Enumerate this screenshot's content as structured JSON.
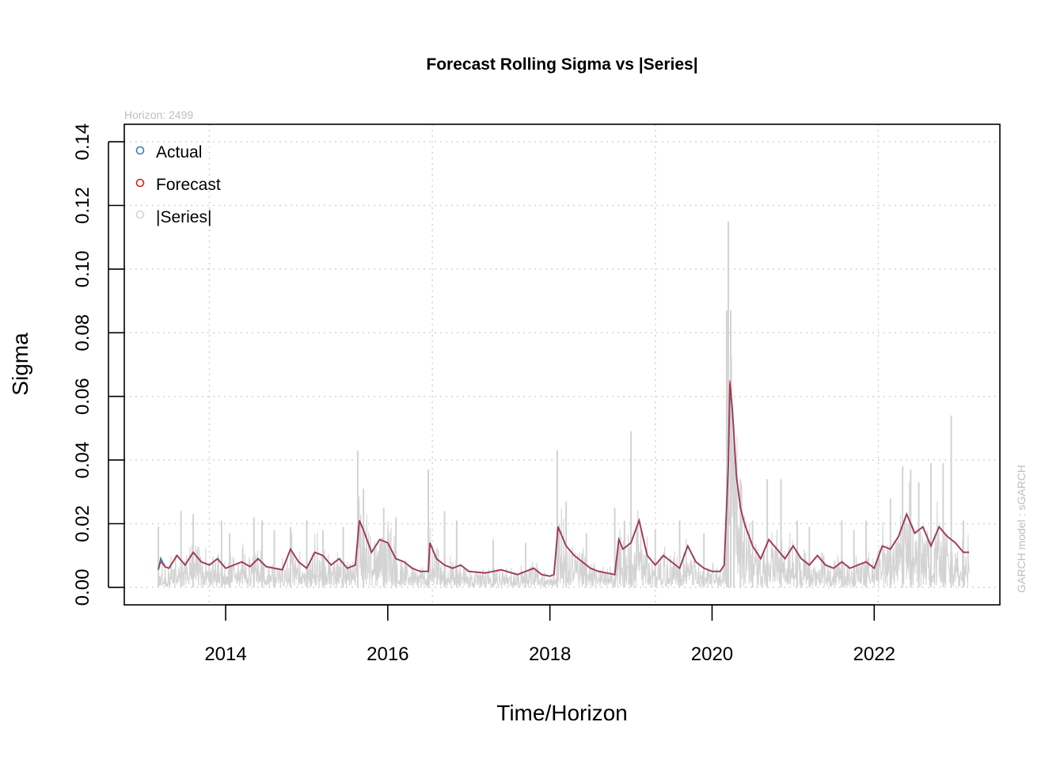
{
  "chart_data": {
    "type": "line",
    "title": "Forecast Rolling Sigma vs |Series|",
    "subtitle": "Horizon: 2499",
    "xlabel": "Time/Horizon",
    "ylabel": "Sigma",
    "side_note": "GARCH model :  sGARCH",
    "xlim": [
      2012.75,
      2023.55
    ],
    "ylim": [
      -0.0055,
      0.1455
    ],
    "x_ticks": [
      2014,
      2016,
      2018,
      2020,
      2022
    ],
    "x_tick_labels": [
      "2014",
      "2016",
      "2018",
      "2020",
      "2022"
    ],
    "y_ticks": [
      0.0,
      0.02,
      0.04,
      0.06,
      0.08,
      0.1,
      0.12,
      0.14
    ],
    "y_tick_labels": [
      "0.00",
      "0.02",
      "0.04",
      "0.06",
      "0.08",
      "0.10",
      "0.12",
      "0.14"
    ],
    "x_grid": [
      2013.8,
      2016.55,
      2019.3,
      2022.05
    ],
    "grid": true,
    "legend_position": "top-left",
    "series": [
      {
        "name": "Actual",
        "color": "#377eb8",
        "x": [
          2013.17,
          2013.2,
          2013.25,
          2013.3,
          2013.4,
          2013.5,
          2013.6,
          2013.7,
          2013.8,
          2013.9,
          2014.0,
          2014.1,
          2014.2,
          2014.3,
          2014.4,
          2014.5,
          2014.6,
          2014.7,
          2014.8,
          2014.9,
          2015.0,
          2015.1,
          2015.2,
          2015.3,
          2015.4,
          2015.5,
          2015.6,
          2015.65,
          2015.7,
          2015.8,
          2015.9,
          2016.0,
          2016.1,
          2016.2,
          2016.3,
          2016.4,
          2016.5,
          2016.52,
          2016.6,
          2016.7,
          2016.8,
          2016.9,
          2017.0,
          2017.2,
          2017.4,
          2017.6,
          2017.8,
          2017.9,
          2018.0,
          2018.05,
          2018.1,
          2018.2,
          2018.3,
          2018.4,
          2018.5,
          2018.6,
          2018.7,
          2018.8,
          2018.85,
          2018.9,
          2019.0,
          2019.1,
          2019.2,
          2019.3,
          2019.4,
          2019.5,
          2019.6,
          2019.7,
          2019.8,
          2019.9,
          2020.0,
          2020.1,
          2020.15,
          2020.2,
          2020.22,
          2020.25,
          2020.3,
          2020.35,
          2020.4,
          2020.5,
          2020.6,
          2020.7,
          2020.8,
          2020.9,
          2021.0,
          2021.1,
          2021.2,
          2021.3,
          2021.4,
          2021.5,
          2021.6,
          2021.7,
          2021.8,
          2021.9,
          2022.0,
          2022.1,
          2022.2,
          2022.3,
          2022.4,
          2022.5,
          2022.6,
          2022.7,
          2022.8,
          2022.9,
          2023.0,
          2023.1,
          2023.17
        ],
        "values": [
          0.0055,
          0.009,
          0.0065,
          0.006,
          0.01,
          0.007,
          0.011,
          0.008,
          0.007,
          0.009,
          0.006,
          0.007,
          0.008,
          0.0065,
          0.009,
          0.0065,
          0.006,
          0.0055,
          0.012,
          0.008,
          0.006,
          0.011,
          0.01,
          0.007,
          0.009,
          0.006,
          0.007,
          0.021,
          0.018,
          0.011,
          0.015,
          0.014,
          0.009,
          0.008,
          0.006,
          0.005,
          0.005,
          0.014,
          0.009,
          0.007,
          0.006,
          0.007,
          0.005,
          0.0045,
          0.0055,
          0.004,
          0.006,
          0.004,
          0.0035,
          0.004,
          0.019,
          0.013,
          0.01,
          0.008,
          0.006,
          0.005,
          0.0045,
          0.004,
          0.015,
          0.012,
          0.014,
          0.021,
          0.01,
          0.007,
          0.01,
          0.008,
          0.006,
          0.013,
          0.008,
          0.006,
          0.005,
          0.005,
          0.007,
          0.038,
          0.064,
          0.056,
          0.035,
          0.025,
          0.02,
          0.013,
          0.009,
          0.015,
          0.012,
          0.009,
          0.013,
          0.009,
          0.007,
          0.01,
          0.007,
          0.006,
          0.008,
          0.006,
          0.007,
          0.008,
          0.006,
          0.013,
          0.012,
          0.016,
          0.023,
          0.017,
          0.019,
          0.013,
          0.019,
          0.016,
          0.014,
          0.011,
          0.011
        ]
      },
      {
        "name": "Forecast",
        "color": "#e41a1c",
        "x": [
          2013.17,
          2013.2,
          2013.25,
          2013.3,
          2013.4,
          2013.5,
          2013.6,
          2013.7,
          2013.8,
          2013.9,
          2014.0,
          2014.1,
          2014.2,
          2014.3,
          2014.4,
          2014.5,
          2014.6,
          2014.7,
          2014.8,
          2014.9,
          2015.0,
          2015.1,
          2015.2,
          2015.3,
          2015.4,
          2015.5,
          2015.6,
          2015.65,
          2015.7,
          2015.8,
          2015.9,
          2016.0,
          2016.1,
          2016.2,
          2016.3,
          2016.4,
          2016.5,
          2016.52,
          2016.6,
          2016.7,
          2016.8,
          2016.9,
          2017.0,
          2017.2,
          2017.4,
          2017.6,
          2017.8,
          2017.9,
          2018.0,
          2018.05,
          2018.1,
          2018.2,
          2018.3,
          2018.4,
          2018.5,
          2018.6,
          2018.7,
          2018.8,
          2018.85,
          2018.9,
          2019.0,
          2019.1,
          2019.2,
          2019.3,
          2019.4,
          2019.5,
          2019.6,
          2019.7,
          2019.8,
          2019.9,
          2020.0,
          2020.1,
          2020.15,
          2020.2,
          2020.22,
          2020.25,
          2020.3,
          2020.35,
          2020.4,
          2020.5,
          2020.6,
          2020.7,
          2020.8,
          2020.9,
          2021.0,
          2021.1,
          2021.2,
          2021.3,
          2021.4,
          2021.5,
          2021.6,
          2021.7,
          2021.8,
          2021.9,
          2022.0,
          2022.1,
          2022.2,
          2022.3,
          2022.4,
          2022.5,
          2022.6,
          2022.7,
          2022.8,
          2022.9,
          2023.0,
          2023.1,
          2023.17
        ],
        "values": [
          0.006,
          0.008,
          0.0065,
          0.006,
          0.01,
          0.007,
          0.011,
          0.008,
          0.007,
          0.009,
          0.006,
          0.007,
          0.008,
          0.0065,
          0.009,
          0.0065,
          0.006,
          0.0055,
          0.012,
          0.008,
          0.006,
          0.011,
          0.01,
          0.007,
          0.009,
          0.006,
          0.007,
          0.021,
          0.018,
          0.011,
          0.015,
          0.014,
          0.009,
          0.008,
          0.006,
          0.005,
          0.005,
          0.014,
          0.009,
          0.007,
          0.006,
          0.007,
          0.005,
          0.0045,
          0.0055,
          0.004,
          0.006,
          0.004,
          0.0035,
          0.004,
          0.019,
          0.013,
          0.01,
          0.008,
          0.006,
          0.005,
          0.0045,
          0.004,
          0.015,
          0.012,
          0.014,
          0.021,
          0.01,
          0.007,
          0.01,
          0.008,
          0.006,
          0.013,
          0.008,
          0.006,
          0.005,
          0.005,
          0.007,
          0.038,
          0.065,
          0.056,
          0.035,
          0.025,
          0.02,
          0.013,
          0.009,
          0.015,
          0.012,
          0.009,
          0.013,
          0.009,
          0.007,
          0.01,
          0.007,
          0.006,
          0.008,
          0.006,
          0.007,
          0.008,
          0.006,
          0.013,
          0.012,
          0.016,
          0.023,
          0.017,
          0.019,
          0.013,
          0.019,
          0.016,
          0.014,
          0.011,
          0.011
        ]
      },
      {
        "name": "|Series|",
        "color": "#d3d3d3",
        "x_range": [
          2013.17,
          2023.17
        ],
        "baseline_level": 0.0,
        "spikes": [
          [
            2013.17,
            0.019
          ],
          [
            2013.45,
            0.024
          ],
          [
            2013.6,
            0.023
          ],
          [
            2013.95,
            0.021
          ],
          [
            2014.05,
            0.017
          ],
          [
            2014.35,
            0.022
          ],
          [
            2014.45,
            0.021
          ],
          [
            2014.6,
            0.018
          ],
          [
            2014.8,
            0.019
          ],
          [
            2015.0,
            0.021
          ],
          [
            2015.2,
            0.018
          ],
          [
            2015.45,
            0.019
          ],
          [
            2015.63,
            0.043
          ],
          [
            2015.7,
            0.031
          ],
          [
            2015.95,
            0.025
          ],
          [
            2016.1,
            0.022
          ],
          [
            2016.5,
            0.037
          ],
          [
            2016.7,
            0.024
          ],
          [
            2016.85,
            0.021
          ],
          [
            2017.3,
            0.015
          ],
          [
            2017.7,
            0.014
          ],
          [
            2018.09,
            0.043
          ],
          [
            2018.2,
            0.027
          ],
          [
            2018.45,
            0.017
          ],
          [
            2018.8,
            0.025
          ],
          [
            2018.92,
            0.021
          ],
          [
            2019.0,
            0.049
          ],
          [
            2019.3,
            0.018
          ],
          [
            2019.6,
            0.021
          ],
          [
            2019.9,
            0.017
          ],
          [
            2020.18,
            0.087
          ],
          [
            2020.2,
            0.115
          ],
          [
            2020.23,
            0.087
          ],
          [
            2020.27,
            0.051
          ],
          [
            2020.35,
            0.034
          ],
          [
            2020.5,
            0.021
          ],
          [
            2020.68,
            0.034
          ],
          [
            2020.85,
            0.034
          ],
          [
            2021.05,
            0.021
          ],
          [
            2021.2,
            0.019
          ],
          [
            2021.6,
            0.021
          ],
          [
            2021.75,
            0.018
          ],
          [
            2021.9,
            0.021
          ],
          [
            2022.2,
            0.028
          ],
          [
            2022.35,
            0.038
          ],
          [
            2022.45,
            0.037
          ],
          [
            2022.55,
            0.033
          ],
          [
            2022.7,
            0.039
          ],
          [
            2022.85,
            0.039
          ],
          [
            2022.95,
            0.054
          ],
          [
            2023.1,
            0.021
          ]
        ]
      }
    ]
  }
}
